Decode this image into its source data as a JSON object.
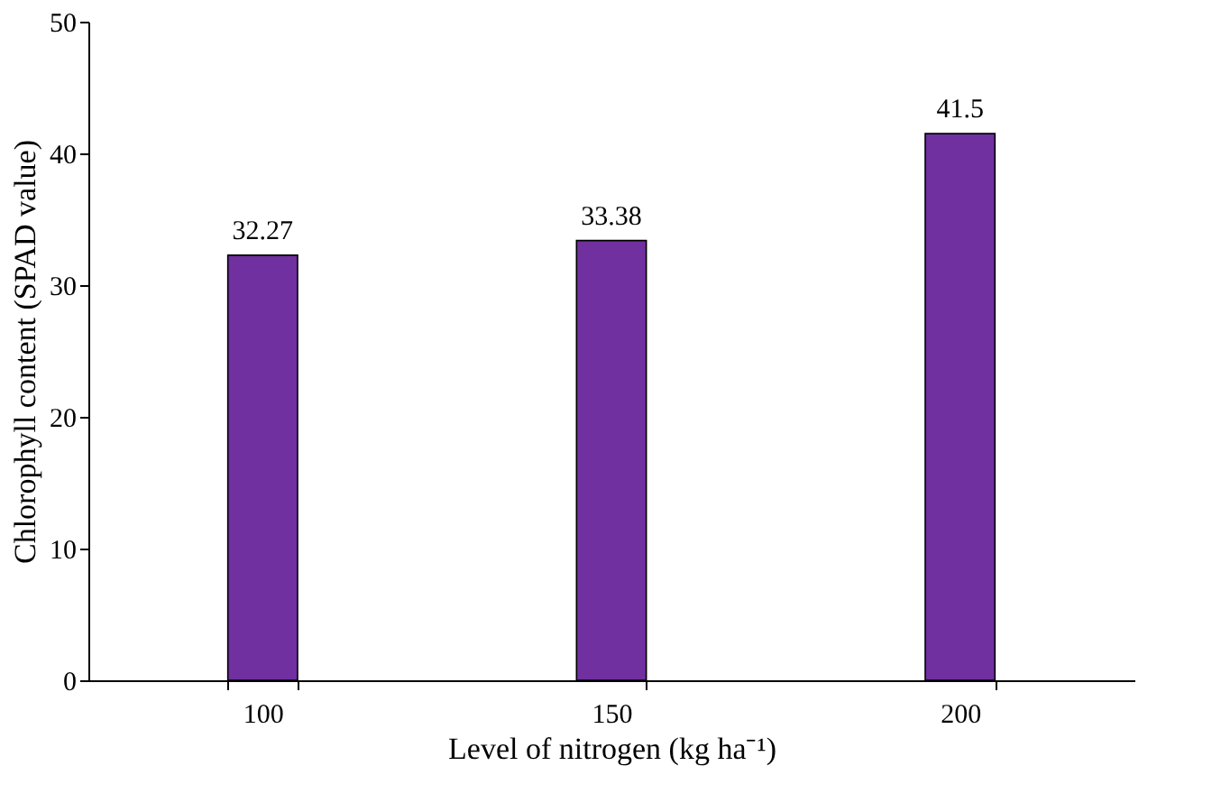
{
  "chart_data": {
    "type": "bar",
    "xlabel": "Level of nitrogen (kg ha⁻¹)",
    "ylabel": "Chlorophyll content (SPAD value)",
    "categories": [
      "100",
      "150",
      "200"
    ],
    "values": [
      32.27,
      33.38,
      41.5
    ],
    "color": "#7030a0",
    "ylim": [
      0,
      50
    ],
    "yticks": [
      0,
      10,
      20,
      30,
      40,
      50
    ],
    "data_labels": true,
    "grid": false
  }
}
